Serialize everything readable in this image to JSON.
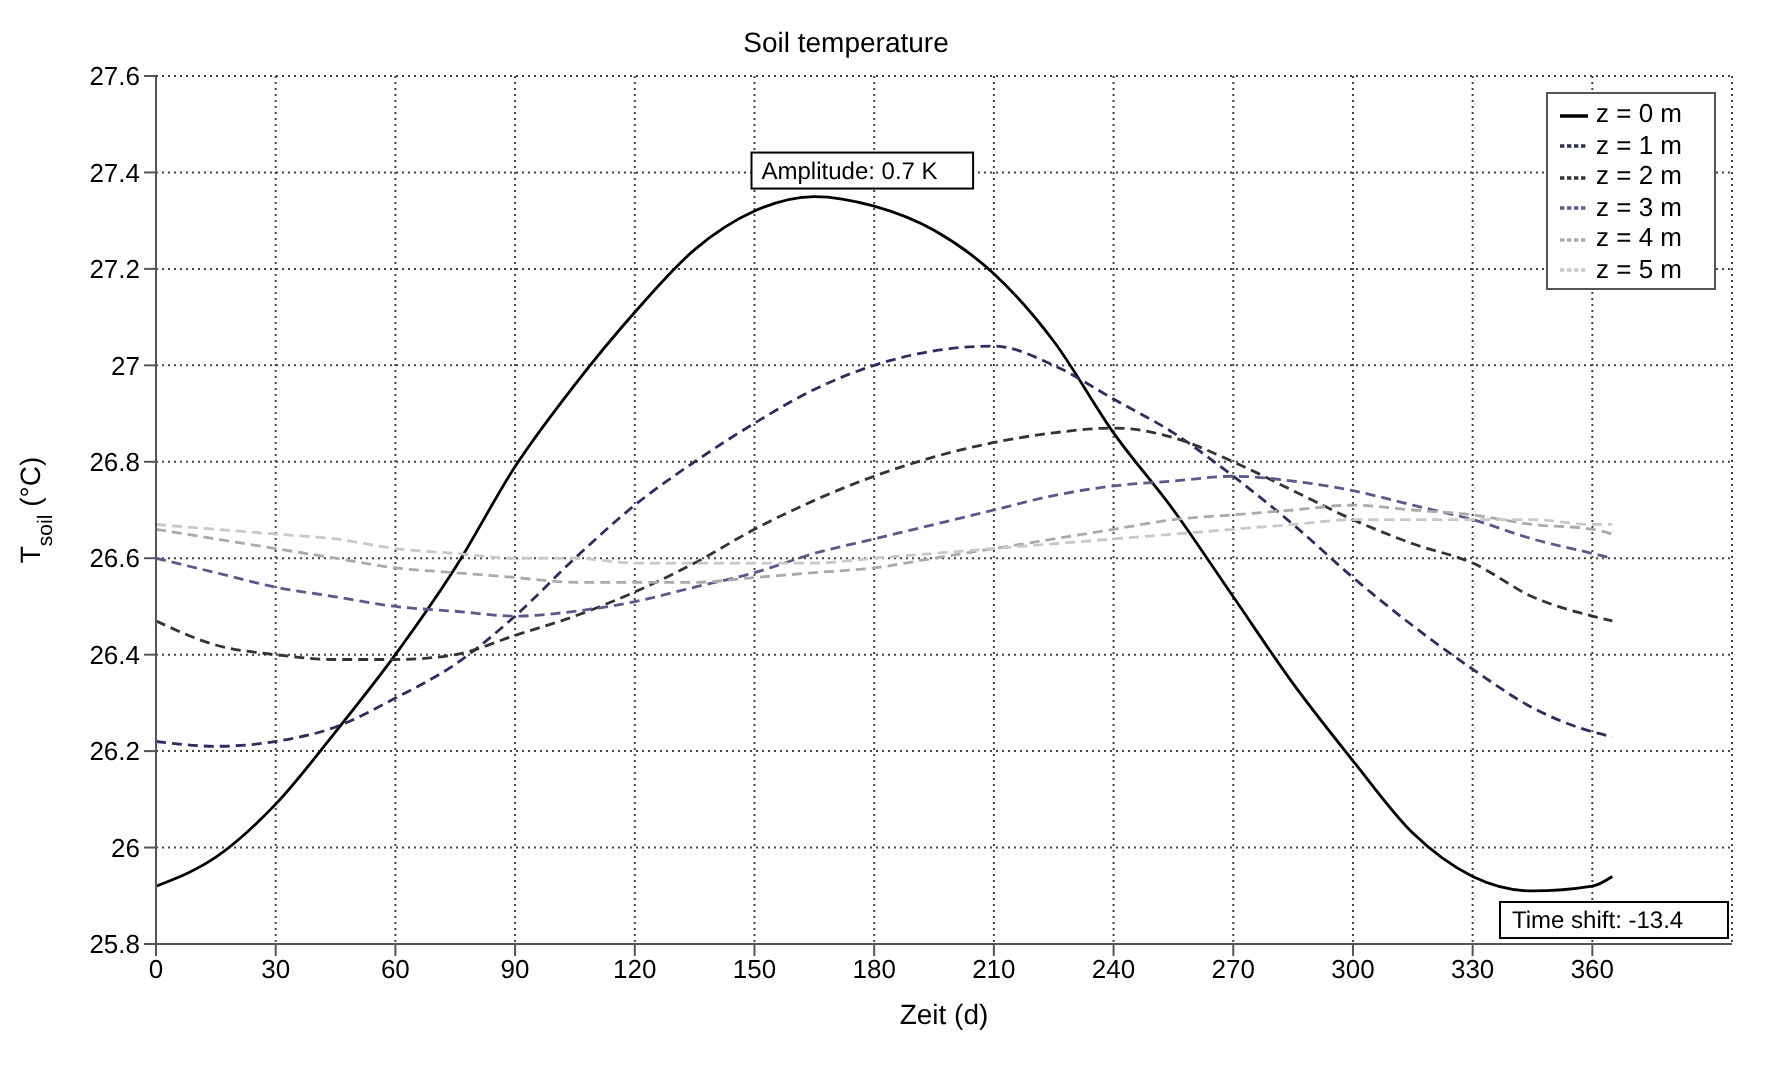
{
  "chart_data": {
    "type": "line",
    "title": "Soil temperature",
    "xlabel": "Zeit (d)",
    "ylabel": "T$_{soil}$ (°C)",
    "x": [
      0,
      15,
      30,
      45,
      60,
      75,
      90,
      105,
      120,
      135,
      150,
      165,
      180,
      195,
      210,
      225,
      240,
      255,
      270,
      285,
      300,
      315,
      330,
      345,
      360,
      365
    ],
    "series": [
      {
        "name": "z = 0 m",
        "color": "#000000",
        "line_style": "solid",
        "values": [
          25.92,
          25.98,
          26.09,
          26.24,
          26.4,
          26.58,
          26.79,
          26.96,
          27.11,
          27.24,
          27.32,
          27.35,
          27.33,
          27.28,
          27.19,
          27.05,
          26.86,
          26.7,
          26.52,
          26.34,
          26.18,
          26.03,
          25.94,
          25.91,
          25.92,
          25.94
        ]
      },
      {
        "name": "z = 1 m",
        "color": "#2e2e5e",
        "line_style": "dashed",
        "values": [
          26.22,
          26.21,
          26.22,
          26.25,
          26.31,
          26.38,
          26.48,
          26.6,
          26.71,
          26.8,
          26.88,
          26.95,
          27.0,
          27.03,
          27.04,
          27.0,
          26.93,
          26.86,
          26.77,
          26.67,
          26.56,
          26.46,
          26.37,
          26.29,
          26.24,
          26.23
        ]
      },
      {
        "name": "z = 2 m",
        "color": "#333333",
        "line_style": "dashed",
        "values": [
          26.47,
          26.42,
          26.4,
          26.39,
          26.39,
          26.4,
          26.44,
          26.48,
          26.53,
          26.59,
          26.66,
          26.72,
          26.77,
          26.81,
          26.84,
          26.86,
          26.87,
          26.85,
          26.8,
          26.74,
          26.68,
          26.63,
          26.59,
          26.52,
          26.48,
          26.47
        ]
      },
      {
        "name": "z = 3 m",
        "color": "#5a5a8a",
        "line_style": "dashed",
        "values": [
          26.6,
          26.57,
          26.54,
          26.52,
          26.5,
          26.49,
          26.48,
          26.49,
          26.51,
          26.54,
          26.57,
          26.61,
          26.64,
          26.67,
          26.7,
          26.73,
          26.75,
          26.76,
          26.77,
          26.76,
          26.74,
          26.71,
          26.68,
          26.64,
          26.61,
          26.6
        ]
      },
      {
        "name": "z = 4 m",
        "color": "#aaaaaa",
        "line_style": "dashed",
        "values": [
          26.66,
          26.64,
          26.62,
          26.6,
          26.58,
          26.57,
          26.56,
          26.55,
          26.55,
          26.55,
          26.56,
          26.57,
          26.58,
          26.6,
          26.62,
          26.64,
          26.66,
          26.68,
          26.69,
          26.7,
          26.71,
          26.7,
          26.69,
          26.67,
          26.66,
          26.65
        ]
      },
      {
        "name": "z = 5 m",
        "color": "#c8c8c8",
        "line_style": "dashed",
        "values": [
          26.67,
          26.66,
          26.65,
          26.64,
          26.62,
          26.61,
          26.6,
          26.6,
          26.59,
          26.59,
          26.59,
          26.59,
          26.6,
          26.61,
          26.62,
          26.63,
          26.64,
          26.65,
          26.66,
          26.67,
          26.68,
          26.68,
          26.68,
          26.68,
          26.67,
          26.67
        ]
      }
    ],
    "xlim": [
      0,
      395
    ],
    "xticks": [
      0,
      30,
      60,
      90,
      120,
      150,
      180,
      210,
      240,
      270,
      300,
      330,
      360
    ],
    "ylim": [
      25.8,
      27.6
    ],
    "yticks": [
      25.8,
      26,
      26.2,
      26.4,
      26.6,
      26.8,
      27,
      27.2,
      27.4,
      27.6
    ],
    "grid": true,
    "legend": "top right",
    "marker": "none",
    "annotations": [
      {
        "text": "Amplitude: 0.7 K",
        "x": 167,
        "y": 27.35
      },
      "Time shift: -13.4"
    ]
  }
}
